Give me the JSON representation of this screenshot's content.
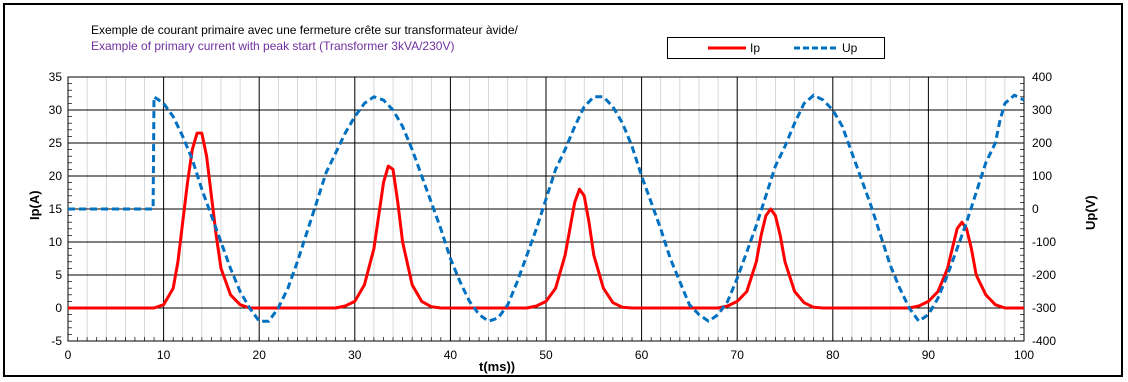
{
  "chart_data": {
    "type": "line",
    "title": "Exemple de courant primaire avec une fermeture crête sur transformateur àvide/",
    "subtitle": "Example of primary current with peak start (Transformer 3kVA/230V)",
    "xlabel": "t(ms))",
    "ylabel": "Ip(A)",
    "y2label": "Up(V)",
    "xlim": [
      0,
      100
    ],
    "ylim": [
      -5,
      35
    ],
    "y2lim": [
      -400,
      400
    ],
    "x_ticks": [
      "0",
      "10",
      "20",
      "30",
      "40",
      "50",
      "60",
      "70",
      "80",
      "90",
      "100"
    ],
    "y_ticks": [
      "-5",
      "0",
      "5",
      "10",
      "15",
      "20",
      "25",
      "30",
      "35"
    ],
    "y2_ticks": [
      "-400",
      "-300",
      "-200",
      "-100",
      "0",
      "100",
      "200",
      "300",
      "400"
    ],
    "grid": true,
    "legend_position": "top-right",
    "series": [
      {
        "name": "Ip",
        "axis": "left",
        "color": "#ff0000",
        "style": "solid",
        "x": [
          0,
          9,
          10,
          11,
          11.5,
          12,
          12.5,
          13,
          13.5,
          14,
          14.5,
          15,
          15.5,
          16,
          17,
          18,
          19,
          20,
          28,
          29,
          30,
          31,
          32,
          32.5,
          33,
          33.5,
          34,
          34.5,
          35,
          36,
          37,
          38,
          39,
          40,
          48,
          49,
          50,
          51,
          52,
          52.5,
          53,
          53.5,
          54,
          54.5,
          55,
          56,
          57,
          58,
          59,
          60,
          68,
          69,
          70,
          71,
          72,
          72.5,
          73,
          73.5,
          74,
          74.5,
          75,
          76,
          77,
          78,
          79,
          80,
          88,
          89,
          90,
          91,
          92,
          92.5,
          93,
          93.5,
          94,
          94.5,
          95,
          96,
          97,
          98,
          99,
          100
        ],
        "values": [
          0,
          0,
          0.5,
          3,
          7,
          13,
          19,
          24,
          26.5,
          26.5,
          23,
          17,
          11,
          6,
          2,
          0.5,
          0,
          0,
          0,
          0.3,
          1,
          3.5,
          9,
          14,
          19,
          21.5,
          21,
          16,
          10,
          3.5,
          1,
          0.2,
          0,
          0,
          0,
          0.3,
          1,
          3,
          8,
          12,
          16,
          18,
          17,
          13,
          8,
          3,
          0.8,
          0.1,
          0,
          0,
          0,
          0.3,
          1,
          2.5,
          7,
          11,
          14,
          15,
          14,
          11,
          7,
          2.5,
          0.8,
          0.1,
          0,
          0,
          0,
          0.3,
          1,
          2.5,
          6,
          9,
          12,
          13,
          12,
          9,
          5,
          2,
          0.5,
          0,
          0,
          0
        ]
      },
      {
        "name": "Up",
        "axis": "right",
        "color": "#0070c0",
        "style": "dashed",
        "x": [
          0,
          8.9,
          9,
          10,
          11,
          12,
          13,
          14,
          15,
          16,
          17,
          18,
          19,
          20,
          21,
          22,
          23,
          24,
          25,
          26,
          27,
          28,
          29,
          30,
          31,
          32,
          33,
          34,
          35,
          36,
          37,
          38,
          39,
          40,
          41,
          42,
          43,
          44,
          45,
          46,
          47,
          48,
          49,
          50,
          51,
          52,
          53,
          54,
          55,
          56,
          57,
          58,
          59,
          60,
          61,
          62,
          63,
          64,
          65,
          66,
          67,
          68,
          69,
          70,
          71,
          72,
          73,
          74,
          75,
          76,
          77,
          78,
          79,
          80,
          81,
          82,
          83,
          84,
          85,
          86,
          87,
          88,
          89,
          90,
          91,
          92,
          93,
          94,
          95,
          96,
          97,
          97.5,
          98,
          99,
          100
        ],
        "values": [
          0,
          0,
          340,
          320,
          280,
          220,
          150,
          60,
          -20,
          -100,
          -180,
          -250,
          -300,
          -340,
          -340,
          -300,
          -240,
          -160,
          -70,
          20,
          110,
          170,
          230,
          280,
          320,
          340,
          330,
          300,
          250,
          180,
          100,
          20,
          -60,
          -150,
          -220,
          -280,
          -320,
          -340,
          -330,
          -290,
          -220,
          -140,
          -60,
          30,
          120,
          180,
          250,
          310,
          340,
          340,
          310,
          260,
          190,
          100,
          20,
          -60,
          -150,
          -220,
          -290,
          -320,
          -340,
          -320,
          -280,
          -210,
          -130,
          -50,
          40,
          130,
          190,
          260,
          320,
          345,
          330,
          300,
          250,
          170,
          90,
          10,
          -80,
          -170,
          -240,
          -300,
          -340,
          -320,
          -270,
          -200,
          -120,
          -40,
          50,
          140,
          200,
          270,
          320,
          345,
          330
        ],
        "_note_order": "ignore"
      }
    ]
  }
}
